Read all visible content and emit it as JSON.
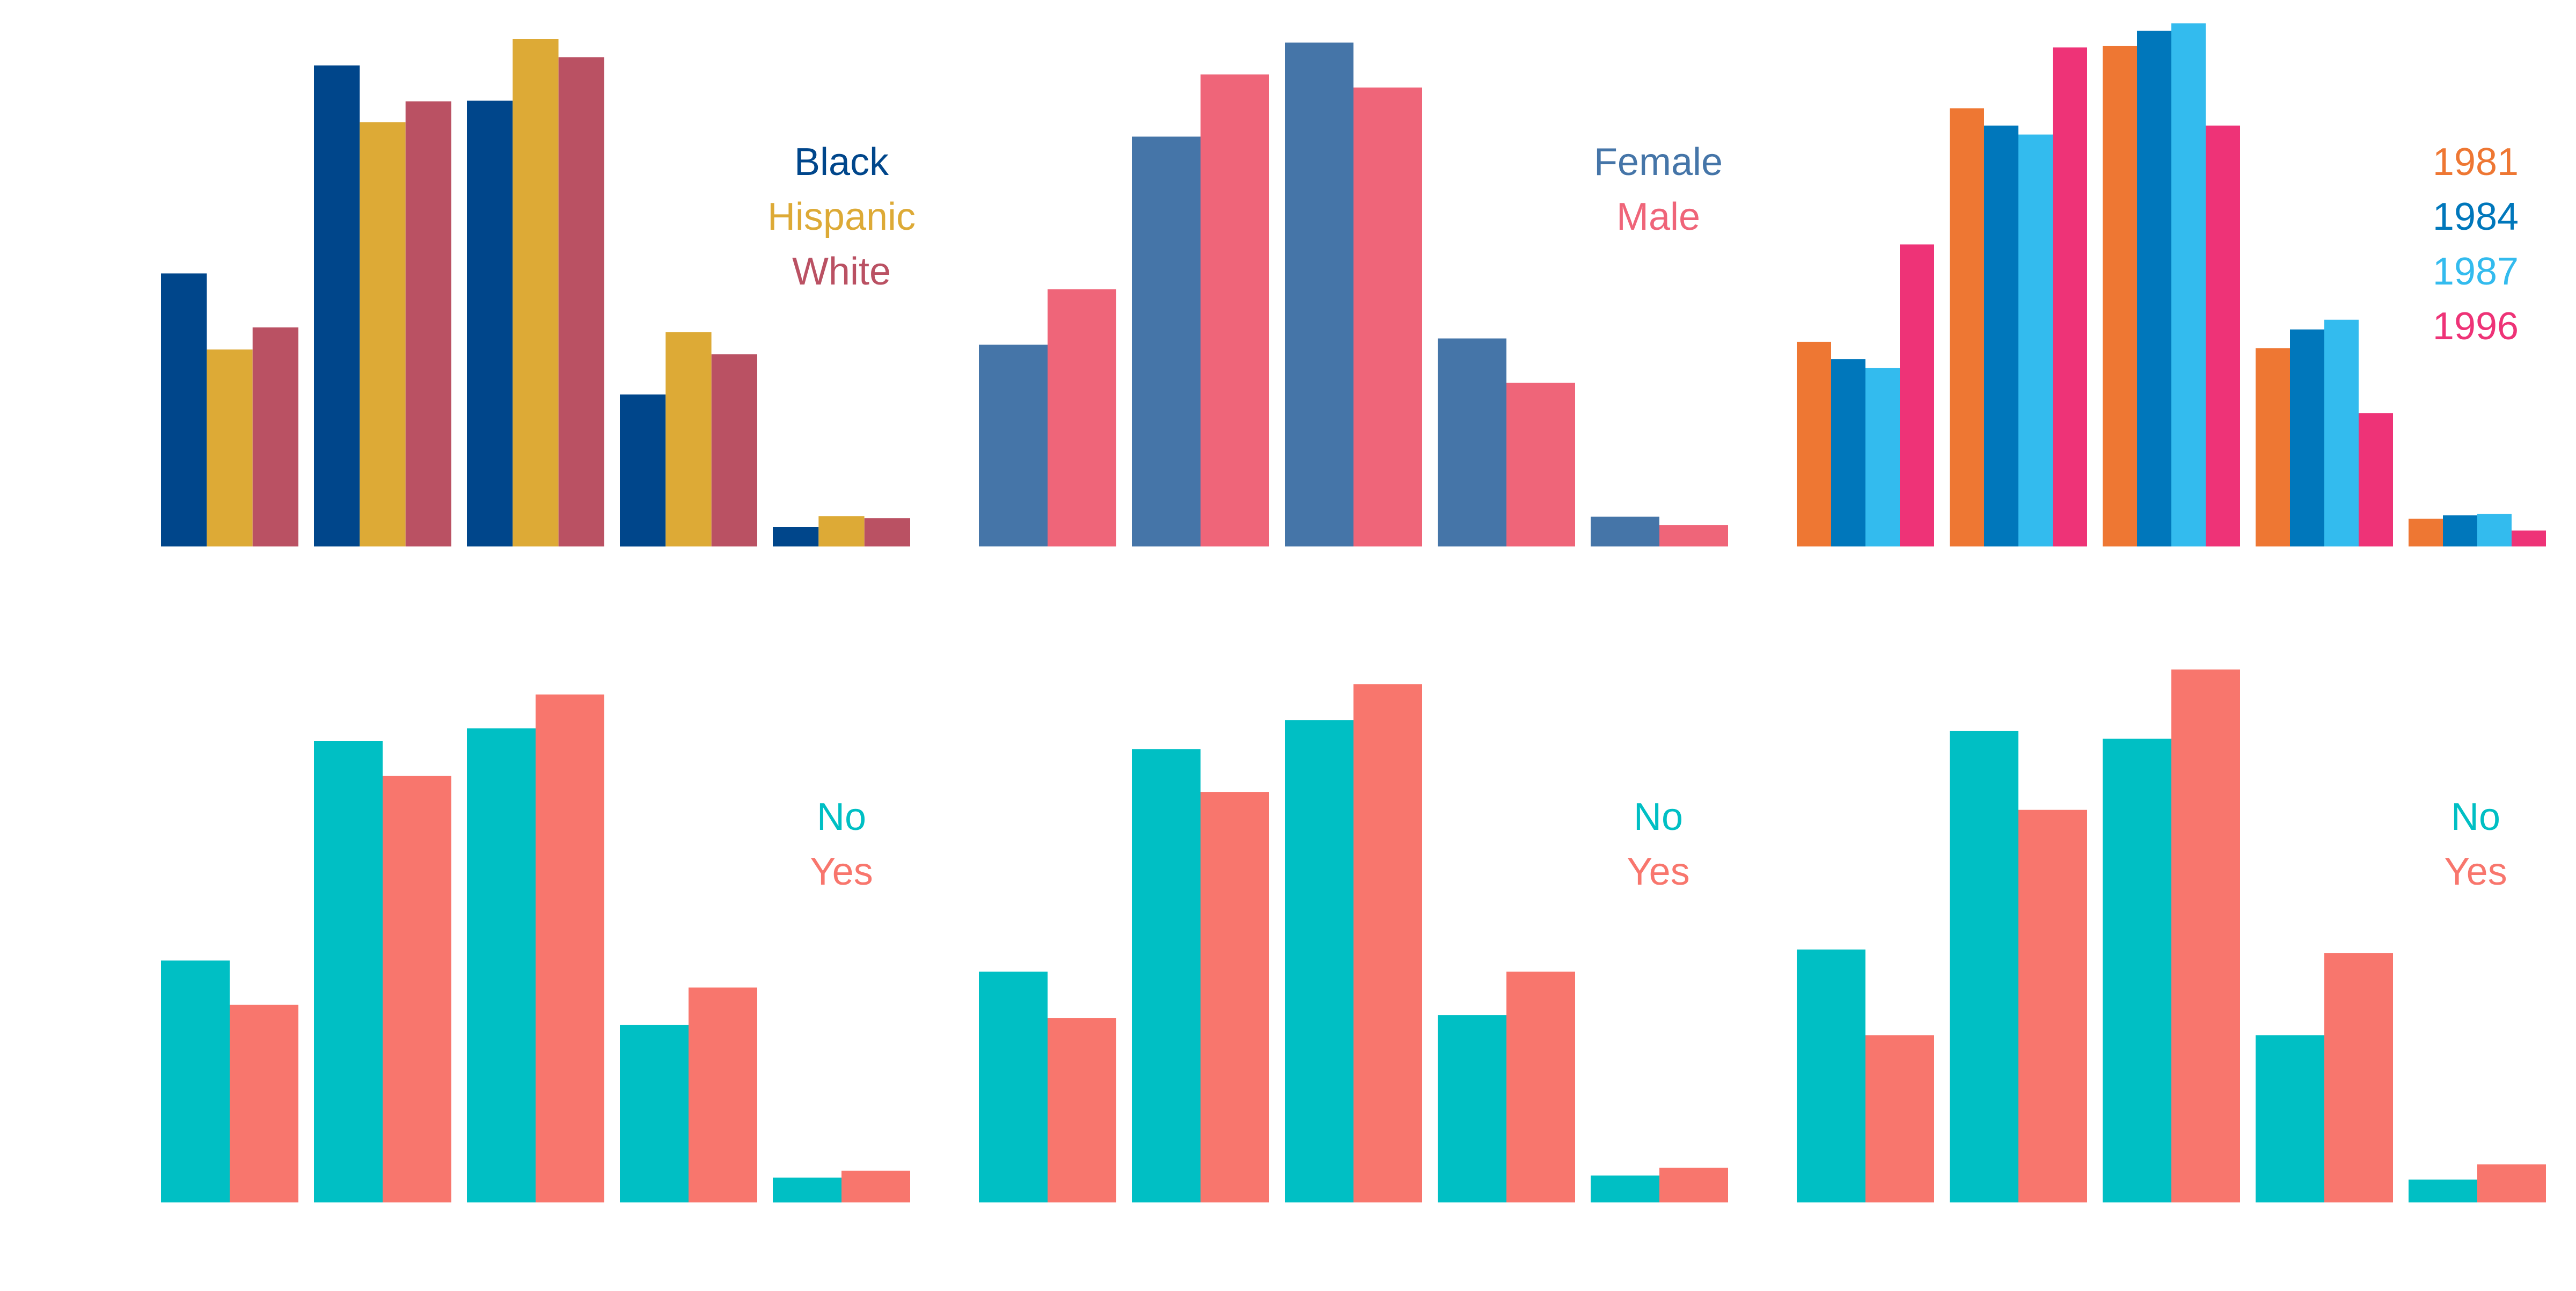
{
  "chart_data": [
    {
      "type": "bar",
      "categories": [
        "",
        "",
        "",
        "",
        ""
      ],
      "series": [
        {
          "name": "Black",
          "color": "#00468B",
          "values": [
            39.5,
            69.6,
            64.5,
            22.0,
            2.8
          ]
        },
        {
          "name": "Hispanic",
          "color": "#DDAA36",
          "values": [
            28.5,
            61.4,
            73.4,
            31.0,
            4.4
          ]
        },
        {
          "name": "White",
          "color": "#BA5163",
          "values": [
            31.7,
            64.4,
            70.8,
            27.8,
            4.1
          ]
        }
      ],
      "ylim": [
        0,
        80
      ],
      "legend": "top-right",
      "grid": false
    },
    {
      "type": "bar",
      "categories": [
        "",
        "",
        "",
        "",
        ""
      ],
      "series": [
        {
          "name": "Female",
          "color": "#4575A8",
          "values": [
            29.2,
            59.3,
            72.9,
            30.1,
            4.3
          ]
        },
        {
          "name": "Male",
          "color": "#EF6579",
          "values": [
            37.2,
            68.3,
            66.4,
            23.7,
            3.1
          ]
        }
      ],
      "ylim": [
        0,
        80
      ],
      "legend": "top-right",
      "grid": false
    },
    {
      "type": "bar",
      "categories": [
        "",
        "",
        "",
        "",
        ""
      ],
      "series": [
        {
          "name": "1981",
          "color": "#EE7733",
          "values": [
            29.6,
            63.4,
            72.4,
            28.7,
            4.0
          ]
        },
        {
          "name": "1984",
          "color": "#0077BB",
          "values": [
            27.1,
            60.9,
            74.6,
            31.4,
            4.5
          ]
        },
        {
          "name": "1987",
          "color": "#33BBEE",
          "values": [
            25.8,
            59.6,
            75.7,
            32.8,
            4.7
          ]
        },
        {
          "name": "1996",
          "color": "#EE3377",
          "values": [
            43.7,
            72.2,
            60.9,
            19.3,
            2.3
          ]
        }
      ],
      "ylim": [
        0,
        80
      ],
      "legend": "top-right",
      "grid": false
    },
    {
      "type": "bar",
      "categories": [
        "",
        "",
        "",
        "",
        ""
      ],
      "series": [
        {
          "name": "No",
          "color": "#00BFC4",
          "values": [
            35.0,
            66.8,
            68.6,
            25.7,
            3.6
          ]
        },
        {
          "name": "Yes",
          "color": "#F8766D",
          "values": [
            28.6,
            61.7,
            73.5,
            31.1,
            4.6
          ]
        }
      ],
      "ylim": [
        0,
        80
      ],
      "legend": "top-right",
      "grid": false
    },
    {
      "type": "bar",
      "categories": [
        "",
        "",
        "",
        "",
        ""
      ],
      "series": [
        {
          "name": "No",
          "color": "#00BFC4",
          "values": [
            33.4,
            65.6,
            69.8,
            27.1,
            3.9
          ]
        },
        {
          "name": "Yes",
          "color": "#F8766D",
          "values": [
            26.7,
            59.4,
            75.0,
            33.4,
            5.0
          ]
        }
      ],
      "ylim": [
        0,
        80
      ],
      "legend": "top-right",
      "grid": false
    },
    {
      "type": "bar",
      "categories": [
        "",
        "",
        "",
        "",
        ""
      ],
      "series": [
        {
          "name": "No",
          "color": "#00BFC4",
          "values": [
            36.6,
            68.2,
            67.1,
            24.2,
            3.3
          ]
        },
        {
          "name": "Yes",
          "color": "#F8766D",
          "values": [
            24.2,
            56.8,
            77.1,
            36.1,
            5.5
          ]
        }
      ],
      "ylim": [
        0,
        80
      ],
      "legend": "top-right",
      "grid": false
    }
  ]
}
